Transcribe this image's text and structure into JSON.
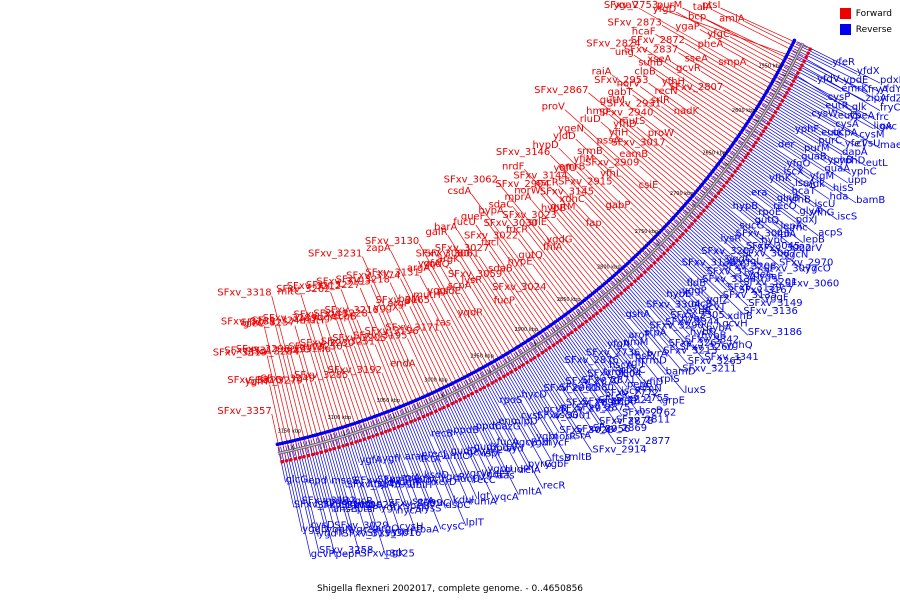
{
  "colors": {
    "forward": "#ee0000",
    "reverse": "#0000ee",
    "backbone": "#666666"
  },
  "legend": [
    {
      "label": "Forward",
      "color": "#ee0000"
    },
    {
      "label": "Reverse",
      "color": "#0000ee"
    }
  ],
  "caption": "Shigella flexneri 2002017, complete genome. - 0..4650856",
  "ticks": [
    "3150 kbp",
    "3100 kbp",
    "3050 kbp",
    "3000 kbp",
    "2950 kbp",
    "2900 kbp",
    "2850 kbp",
    "2800 kbp",
    "2750 kbp",
    "2700 kbp",
    "2650 kbp",
    "2600 kbp",
    "2550 kbp"
  ],
  "reverse_labels": [
    "glcG",
    "SFxv_3259_trmI",
    "yggD",
    "gcvP",
    "SFxv_3132",
    "cysD",
    "SFxv_3258",
    "ygdT",
    "epd",
    "SFxv_3162",
    "yqgN",
    "pepP",
    "rppH",
    "SFxv_3029",
    "ansB",
    "SFxv_3155",
    "mscS",
    "SFxv_3026",
    "ygcS",
    "SFxv_3025",
    "ygcR",
    "SFxv_3145",
    "ptsP",
    "SFxv_3016",
    "SFxv_3015",
    "spe",
    "argO",
    "pgk",
    "ygfA",
    "thyA",
    "ygfX",
    "yqeF",
    "SFxv_3108",
    "SFxv_3099",
    "cysH",
    "hycA",
    "ygfI",
    "yggR",
    "speB",
    "fbaA",
    "rpiA",
    "serA",
    "ubiH",
    "lysS",
    "araE",
    "ptrA",
    "truC",
    "cysC",
    "ksdD",
    "tktA",
    "xerD",
    "dsbC",
    "recJ",
    "ygeR",
    "kdul",
    "lplT",
    "recB",
    "amiC",
    "fucO",
    "rumA",
    "gudD",
    "ygcW",
    "lgt",
    "recC",
    "ppdB",
    "gcvA",
    "ygdE",
    "yqcA",
    "gudX",
    "ygcU",
    "ispF",
    "aas",
    "ppdC",
    "ppdA",
    "gudP",
    "mltA",
    "fucA",
    "mazG",
    "syd",
    "relA",
    "eno",
    "ygcB",
    "pyrG",
    "recR",
    "rpoS",
    "nlpD",
    "ygbl",
    "ygbF",
    "cysJ",
    "ygbI",
    "ftsB",
    "hycF",
    "hycD",
    "SFxv_3001",
    "norR",
    "mltB",
    "gcvR",
    "SFxv_3028",
    "ascG",
    "csrA",
    "SFxv_2961",
    "SFxv_2936",
    "SFxv_2956",
    "SFxv_2914",
    "SFxv_2894",
    "SFxv_2880",
    "SFxv_2875",
    "SFxv_2869",
    "SFxv_2870",
    "SFxv_2866",
    "SFxv_2878",
    "SFxv_2877",
    "SFxv_2876",
    "SFxv_2871",
    "SFxv_2821",
    "SFxv_2811",
    "SFxv_2804",
    "SFxv_2772",
    "SFxv_2762",
    "SFxv_2755",
    "SFxv_2736",
    "trmJ",
    "iscR",
    "hscB",
    "hscA",
    "pepB",
    "pbpC",
    "rlmN",
    "yfgA",
    "ygfJ",
    "yfiD",
    "grpE",
    "rpsP",
    "rimM",
    "trmD",
    "rplS",
    "aroF",
    "tyrA",
    "bamD",
    "luxS",
    "gshA",
    "stpA",
    "SFxv_3213",
    "SFxv_3211",
    "SFxv_3290",
    "SFxv_3267",
    "SFxv_3265",
    "SFxv_3260",
    "SFxv_3304",
    "SFxv_3344",
    "SFxv_3342",
    "SFxv_3341",
    "SFxv_3305",
    "hybF",
    "hybC",
    "hybB",
    "hybE",
    "exbB",
    "hybA",
    "yghQ",
    "glcB",
    "yggP",
    "gcvT",
    "gcvH",
    "fldB",
    "ygfZ",
    "xdhB",
    "SFxv_3186",
    "SFxv_3138",
    "SFxv_3134",
    "SFxv_3135",
    "SFxv_3136",
    "SFxv_3137",
    "SFxv_3139",
    "SFxv_3149",
    "SFxv_3167",
    "SFxv_3207",
    "SFxv_3208",
    "SFxv_3201",
    "yggF",
    "yggC",
    "yqeG",
    "yggL",
    "ygaF",
    "lysR",
    "SFxv_3087",
    "SFxv_3077",
    "SFxv_3060",
    "SFxv_3045",
    "SFxv_3046",
    "SFxv_3022",
    "SFxv_2970",
    "sucG",
    "hypC",
    "ygcN",
    "ygcO",
    "hypB",
    "gutQ",
    "fhlA",
    "norV",
    "rpoE",
    "lepA",
    "lepB",
    "rnc",
    "era",
    "recO",
    "pdxJ",
    "acpS",
    "glnB",
    "glyA",
    "yfhB",
    "yfhG",
    "yfhK",
    "hcaT",
    "iscU",
    "iscS",
    "iscA",
    "iscX",
    "ndk",
    "hda",
    "yfgO",
    "yfgM",
    "hisS",
    "bamB",
    "der",
    "guaB",
    "guaA",
    "upp",
    "purM",
    "yphB",
    "yphC",
    "yphD",
    "yphF",
    "purC",
    "dapA",
    "eutL",
    "eutK",
    "yfeT",
    "ucpA",
    "cysU",
    "cysW",
    "cysA",
    "cysM",
    "maeB",
    "eutS",
    "eutR",
    "ypeA",
    "ligA",
    "cysP",
    "glk",
    "frc",
    "oxc",
    "yfdV",
    "emrK",
    "zipA",
    "fryC",
    "ypdE",
    "fryA",
    "yfdZ",
    "yfdY",
    "yfeR",
    "yfdX",
    "pdxK"
  ],
  "forward_labels": [
    "SFxv_3357",
    "yghT",
    "SFxv_3319",
    "glcC",
    "SFxv_3316",
    "SFxv_3317",
    "SFxv_3288",
    "SFxv_3318",
    "SFxv_3298",
    "SFxv_3279",
    "SFxv_3284",
    "SFxv_3257",
    "SFxv_3249",
    "nupG",
    "SFxv_3248",
    "mltC",
    "yggW",
    "SFxv_3289",
    "flu",
    "mutY",
    "SFxv_3285",
    "SFxv_3250",
    "yqgA",
    "SFxv_3262",
    "SFxv_3230",
    "SFxv_3245",
    "SFxv_3212",
    "scpB",
    "SFxv_3192",
    "SFxv_3251",
    "SFxv_3228",
    "SFxv_3227",
    "SFxv_3205",
    "SFxv_3216",
    "SFxv_3193",
    "SFxv_3231",
    "endA",
    "SFxv_3195",
    "yggX",
    "SFxv_3218",
    "SFxv_3196",
    "argP",
    "SFxv_3174",
    "zapA",
    "bglA",
    "SFxv_3171",
    "SFxv_3165",
    "SFxv_3131",
    "tas",
    "mutH",
    "argA",
    "SFxv_3130",
    "yqgF",
    "ygfA",
    "csdE",
    "yqdQ",
    "yqdR",
    "scpA",
    "argK",
    "galR",
    "lysR",
    "SFxv_3080",
    "barA",
    "SFxv_3061",
    "fucP",
    "SFxv_3059",
    "SFxv_3027",
    "fucU",
    "sdaB",
    "fucl",
    "queF",
    "csdA",
    "SFxv_3024",
    "hypE",
    "SFxv_3022",
    "hypA",
    "gutQ",
    "fucR",
    "sdaC",
    "SFxv_3062",
    "SFxv_3030",
    "fhlA",
    "srlE",
    "mprA",
    "ygdG",
    "SFxv_3023",
    "norW",
    "nrdF",
    "hypB",
    "SFxv_2904",
    "gutM",
    "sscR",
    "fap",
    "xdhC",
    "SFxv_3144",
    "SFxv_3146",
    "SFxv_3145",
    "ygfU",
    "hypD",
    "emrB",
    "gabP",
    "SFxv_2915",
    "yfiM",
    "yjdD",
    "yfhL",
    "srmB",
    "ygeN",
    "proV",
    "csiE",
    "SFxv_2909",
    "pssA",
    "rluD",
    "eamB",
    "yfiH",
    "hmp",
    "SFxv_2867",
    "yfhD",
    "SFxv_3017",
    "mutS",
    "gutM",
    "proW",
    "SFxv_2940",
    "gabT",
    "raiA",
    "SFxv_2931",
    "norV",
    "srlR",
    "SFxv_2953",
    "nadK",
    "recN",
    "clpB",
    "ung",
    "yfhH",
    "suhB",
    "SFxv_2824",
    "xseA",
    "SFxv_2807",
    "gcvR",
    "SFxv_2837",
    "hcaF",
    "sseA",
    "SFxv_2872",
    "SFxv_2873",
    "ygaV",
    "smpA",
    "pheA",
    "ygaP",
    "yfgD",
    "yfgC",
    "bcp",
    "purM",
    "SFxv_2753",
    "talA",
    "amiA",
    "ptsI"
  ],
  "kbp_range": {
    "start": 2520,
    "end": 3160,
    "genome_length": 4650856
  }
}
